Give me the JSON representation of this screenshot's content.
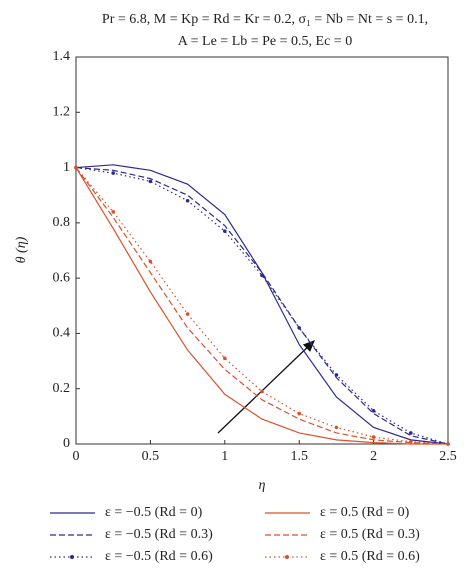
{
  "chart_data": {
    "type": "line",
    "title": [
      "Pr = 6.8, M = Kp = Rd = Kr = 0.2, σ₁ = Nb = Nt = s = 0.1,",
      "A = Le = Lb = Pe = 0.5, Ec = 0"
    ],
    "xlabel": "η",
    "ylabel": "θ (η)",
    "x": [
      0,
      0.25,
      0.5,
      0.75,
      1,
      1.25,
      1.5,
      1.75,
      2,
      2.25,
      2.5
    ],
    "series": [
      {
        "name": "ε = −0.5 (Rd = 0)",
        "color": "#2b2b8f",
        "style": "solid",
        "values": [
          1,
          1.01,
          0.99,
          0.94,
          0.83,
          0.62,
          0.36,
          0.17,
          0.06,
          0.015,
          0
        ]
      },
      {
        "name": "ε = 0.5 (Rd = 0)",
        "color": "#d9522b",
        "style": "solid",
        "values": [
          1,
          0.78,
          0.55,
          0.34,
          0.18,
          0.09,
          0.04,
          0.015,
          0.005,
          0,
          0
        ]
      },
      {
        "name": "ε = −0.5 (Rd = 0.3)",
        "color": "#2b2b8f",
        "style": "dashed",
        "values": [
          1,
          0.99,
          0.96,
          0.9,
          0.79,
          0.62,
          0.42,
          0.24,
          0.11,
          0.03,
          0
        ]
      },
      {
        "name": "ε = 0.5 (Rd = 0.3)",
        "color": "#d9522b",
        "style": "dashed",
        "values": [
          1,
          0.82,
          0.62,
          0.42,
          0.27,
          0.16,
          0.09,
          0.04,
          0.015,
          0.005,
          0
        ]
      },
      {
        "name": "ε = −0.5 (Rd = 0.6)",
        "color": "#2b2b8f",
        "style": "dotted",
        "values": [
          1,
          0.98,
          0.95,
          0.88,
          0.77,
          0.61,
          0.42,
          0.25,
          0.12,
          0.04,
          0
        ]
      },
      {
        "name": "ε = 0.5 (Rd = 0.6)",
        "color": "#d9522b",
        "style": "dotted",
        "values": [
          1,
          0.84,
          0.66,
          0.47,
          0.31,
          0.19,
          0.11,
          0.06,
          0.025,
          0.008,
          0
        ]
      }
    ],
    "xlim": [
      0,
      2.5
    ],
    "xticks": [
      0,
      0.5,
      1,
      1.5,
      2,
      2.5
    ],
    "ylim": [
      0,
      1.4
    ],
    "yticks": [
      0,
      0.2,
      0.4,
      0.6,
      0.8,
      1,
      1.2,
      1.4
    ],
    "grid": false
  }
}
